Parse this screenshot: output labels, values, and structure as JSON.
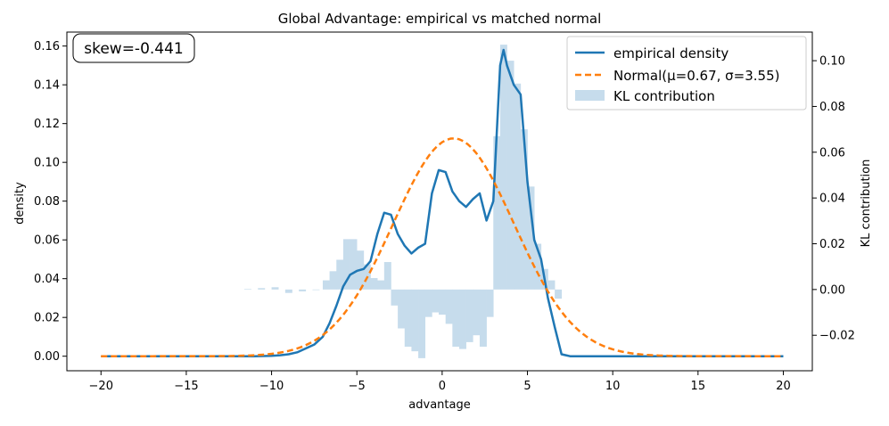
{
  "chart_data": {
    "type": "line",
    "title": "Global Advantage: empirical vs matched normal",
    "xlabel": "advantage",
    "ylabel": "density",
    "y2label": "KL contribution",
    "xlim": [
      -22,
      21.7
    ],
    "ylim": [
      -0.0075,
      0.1672
    ],
    "y2lim": [
      -0.0355,
      0.1125
    ],
    "xticks": [
      -20,
      -15,
      -10,
      -5,
      0,
      5,
      10,
      15,
      20
    ],
    "yticks": [
      0.0,
      0.02,
      0.04,
      0.06,
      0.08,
      0.1,
      0.12,
      0.14,
      0.16
    ],
    "y2ticks": [
      -0.02,
      0.0,
      0.02,
      0.04,
      0.06,
      0.08,
      0.1
    ],
    "skew_label": "skew=-0.441",
    "series": [
      {
        "name": "empirical density",
        "color": "#1f77b4",
        "style": "solid",
        "x": [
          -20,
          -11,
          -10,
          -9.5,
          -9,
          -8.5,
          -8,
          -7.5,
          -7,
          -6.6,
          -6.2,
          -5.8,
          -5.4,
          -5,
          -4.6,
          -4.2,
          -3.8,
          -3.4,
          -3.0,
          -2.6,
          -2.2,
          -1.8,
          -1.4,
          -1.0,
          -0.6,
          -0.2,
          0.2,
          0.6,
          1.0,
          1.4,
          1.8,
          2.2,
          2.6,
          3.0,
          3.4,
          3.6,
          3.8,
          4.2,
          4.6,
          5.0,
          5.4,
          5.8,
          6.2,
          6.6,
          7.0,
          7.5,
          20
        ],
        "values": [
          0.0,
          0.0,
          0.0002,
          0.0005,
          0.001,
          0.002,
          0.004,
          0.006,
          0.01,
          0.017,
          0.026,
          0.036,
          0.042,
          0.044,
          0.045,
          0.049,
          0.063,
          0.074,
          0.073,
          0.063,
          0.057,
          0.053,
          0.056,
          0.058,
          0.084,
          0.096,
          0.095,
          0.085,
          0.08,
          0.077,
          0.081,
          0.084,
          0.07,
          0.08,
          0.15,
          0.158,
          0.15,
          0.14,
          0.135,
          0.09,
          0.06,
          0.05,
          0.03,
          0.015,
          0.001,
          0.0,
          0.0
        ]
      },
      {
        "name": "Normal(μ=0.67, σ=3.55)",
        "color": "#ff7f0e",
        "style": "dashed",
        "mu": 0.67,
        "sigma": 3.55
      }
    ],
    "bars": {
      "name": "KL contribution",
      "color": "#c6dcec",
      "x": [
        -11.4,
        -10.6,
        -9.8,
        -9.0,
        -8.2,
        -7.4,
        -6.8,
        -6.4,
        -6.0,
        -5.6,
        -5.2,
        -4.8,
        -4.4,
        -4.0,
        -3.6,
        -3.2,
        -2.8,
        -2.4,
        -2.0,
        -1.6,
        -1.2,
        -0.8,
        -0.4,
        0.0,
        0.4,
        0.8,
        1.2,
        1.6,
        2.0,
        2.4,
        2.8,
        3.2,
        3.6,
        4.0,
        4.4,
        4.8,
        5.2,
        5.6,
        6.0,
        6.4,
        6.8
      ],
      "width": 0.4,
      "values": [
        0.0002,
        0.0006,
        0.001,
        -0.0015,
        -0.0008,
        0.0,
        0.004,
        0.008,
        0.013,
        0.022,
        0.022,
        0.017,
        0.011,
        0.005,
        0.004,
        0.012,
        -0.007,
        -0.017,
        -0.025,
        -0.027,
        -0.03,
        -0.012,
        -0.01,
        -0.011,
        -0.015,
        -0.025,
        -0.026,
        -0.023,
        -0.02,
        -0.025,
        -0.012,
        0.067,
        0.107,
        0.1,
        0.09,
        0.07,
        0.045,
        0.02,
        0.009,
        0.004,
        -0.004
      ]
    },
    "legend": {
      "position": "top-right",
      "entries": [
        "empirical density",
        "Normal(μ=0.67, σ=3.55)",
        "KL contribution"
      ]
    }
  }
}
